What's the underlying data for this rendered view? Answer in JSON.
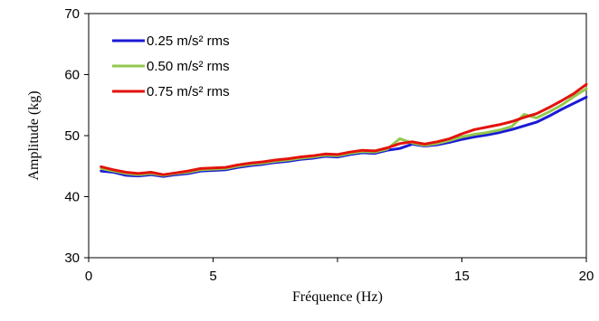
{
  "chart_data": {
    "type": "line",
    "title": "",
    "xlabel": "Fréquence (Hz)",
    "ylabel": "Amplitude (kg)",
    "xlim": [
      0,
      20
    ],
    "ylim": [
      30,
      70
    ],
    "xticks": [
      0,
      5,
      10,
      15,
      20
    ],
    "xtick_labels": [
      "0",
      "5",
      "",
      "15",
      "20"
    ],
    "yticks": [
      30,
      40,
      50,
      60,
      70
    ],
    "ytick_labels": [
      "30",
      "40",
      "50",
      "60",
      "70"
    ],
    "grid": false,
    "legend_position": "top-left",
    "series": [
      {
        "name": "0.25 m/s² rms",
        "color": "#1a1ad6",
        "x": [
          0.5,
          1.0,
          1.5,
          2.0,
          2.5,
          3.0,
          3.5,
          4.0,
          4.5,
          5.0,
          5.5,
          6.0,
          6.5,
          7.0,
          7.5,
          8.0,
          8.5,
          9.0,
          9.5,
          10.0,
          10.5,
          11.0,
          11.5,
          12.0,
          12.5,
          13.0,
          13.5,
          14.0,
          14.5,
          15.0,
          15.5,
          16.0,
          16.5,
          17.0,
          17.5,
          18.0,
          18.5,
          19.0,
          19.5,
          20.0
        ],
        "y": [
          44.2,
          44.0,
          43.5,
          43.4,
          43.6,
          43.3,
          43.6,
          43.8,
          44.2,
          44.3,
          44.4,
          44.8,
          45.1,
          45.3,
          45.6,
          45.8,
          46.1,
          46.3,
          46.6,
          46.5,
          46.9,
          47.2,
          47.1,
          47.6,
          47.9,
          48.6,
          48.3,
          48.5,
          48.9,
          49.4,
          49.8,
          50.1,
          50.5,
          51.0,
          51.6,
          52.2,
          53.2,
          54.3,
          55.3,
          56.3
        ]
      },
      {
        "name": "0.50 m/s² rms",
        "color": "#92c84e",
        "x": [
          0.5,
          1.0,
          1.5,
          2.0,
          2.5,
          3.0,
          3.5,
          4.0,
          4.5,
          5.0,
          5.5,
          6.0,
          6.5,
          7.0,
          7.5,
          8.0,
          8.5,
          9.0,
          9.5,
          10.0,
          10.5,
          11.0,
          11.5,
          12.0,
          12.5,
          13.0,
          13.5,
          14.0,
          14.5,
          15.0,
          15.5,
          16.0,
          16.5,
          17.0,
          17.5,
          18.0,
          18.5,
          19.0,
          19.5,
          20.0
        ],
        "y": [
          44.6,
          44.2,
          43.8,
          43.6,
          43.8,
          43.5,
          43.8,
          44.0,
          44.4,
          44.5,
          44.6,
          45.0,
          45.3,
          45.5,
          45.8,
          46.0,
          46.3,
          46.5,
          46.8,
          46.7,
          47.1,
          47.4,
          47.3,
          47.8,
          49.5,
          48.8,
          48.4,
          48.7,
          49.2,
          49.8,
          50.2,
          50.5,
          50.9,
          51.5,
          53.5,
          52.9,
          53.9,
          55.0,
          56.4,
          57.7
        ]
      },
      {
        "name": "0.75 m/s² rms",
        "color": "#e3120b",
        "x": [
          0.5,
          1.0,
          1.5,
          2.0,
          2.5,
          3.0,
          3.5,
          4.0,
          4.5,
          5.0,
          5.5,
          6.0,
          6.5,
          7.0,
          7.5,
          8.0,
          8.5,
          9.0,
          9.5,
          10.0,
          10.5,
          11.0,
          11.5,
          12.0,
          12.5,
          13.0,
          13.5,
          14.0,
          14.5,
          15.0,
          15.5,
          16.0,
          16.5,
          17.0,
          17.5,
          18.0,
          18.5,
          19.0,
          19.5,
          20.0
        ],
        "y": [
          44.9,
          44.4,
          44.0,
          43.8,
          44.0,
          43.6,
          43.9,
          44.2,
          44.6,
          44.7,
          44.8,
          45.2,
          45.5,
          45.7,
          46.0,
          46.2,
          46.5,
          46.7,
          47.0,
          46.9,
          47.3,
          47.6,
          47.5,
          48.0,
          48.7,
          49.0,
          48.6,
          49.0,
          49.5,
          50.3,
          51.0,
          51.4,
          51.8,
          52.3,
          53.0,
          53.6,
          54.6,
          55.7,
          56.9,
          58.4
        ]
      }
    ]
  }
}
